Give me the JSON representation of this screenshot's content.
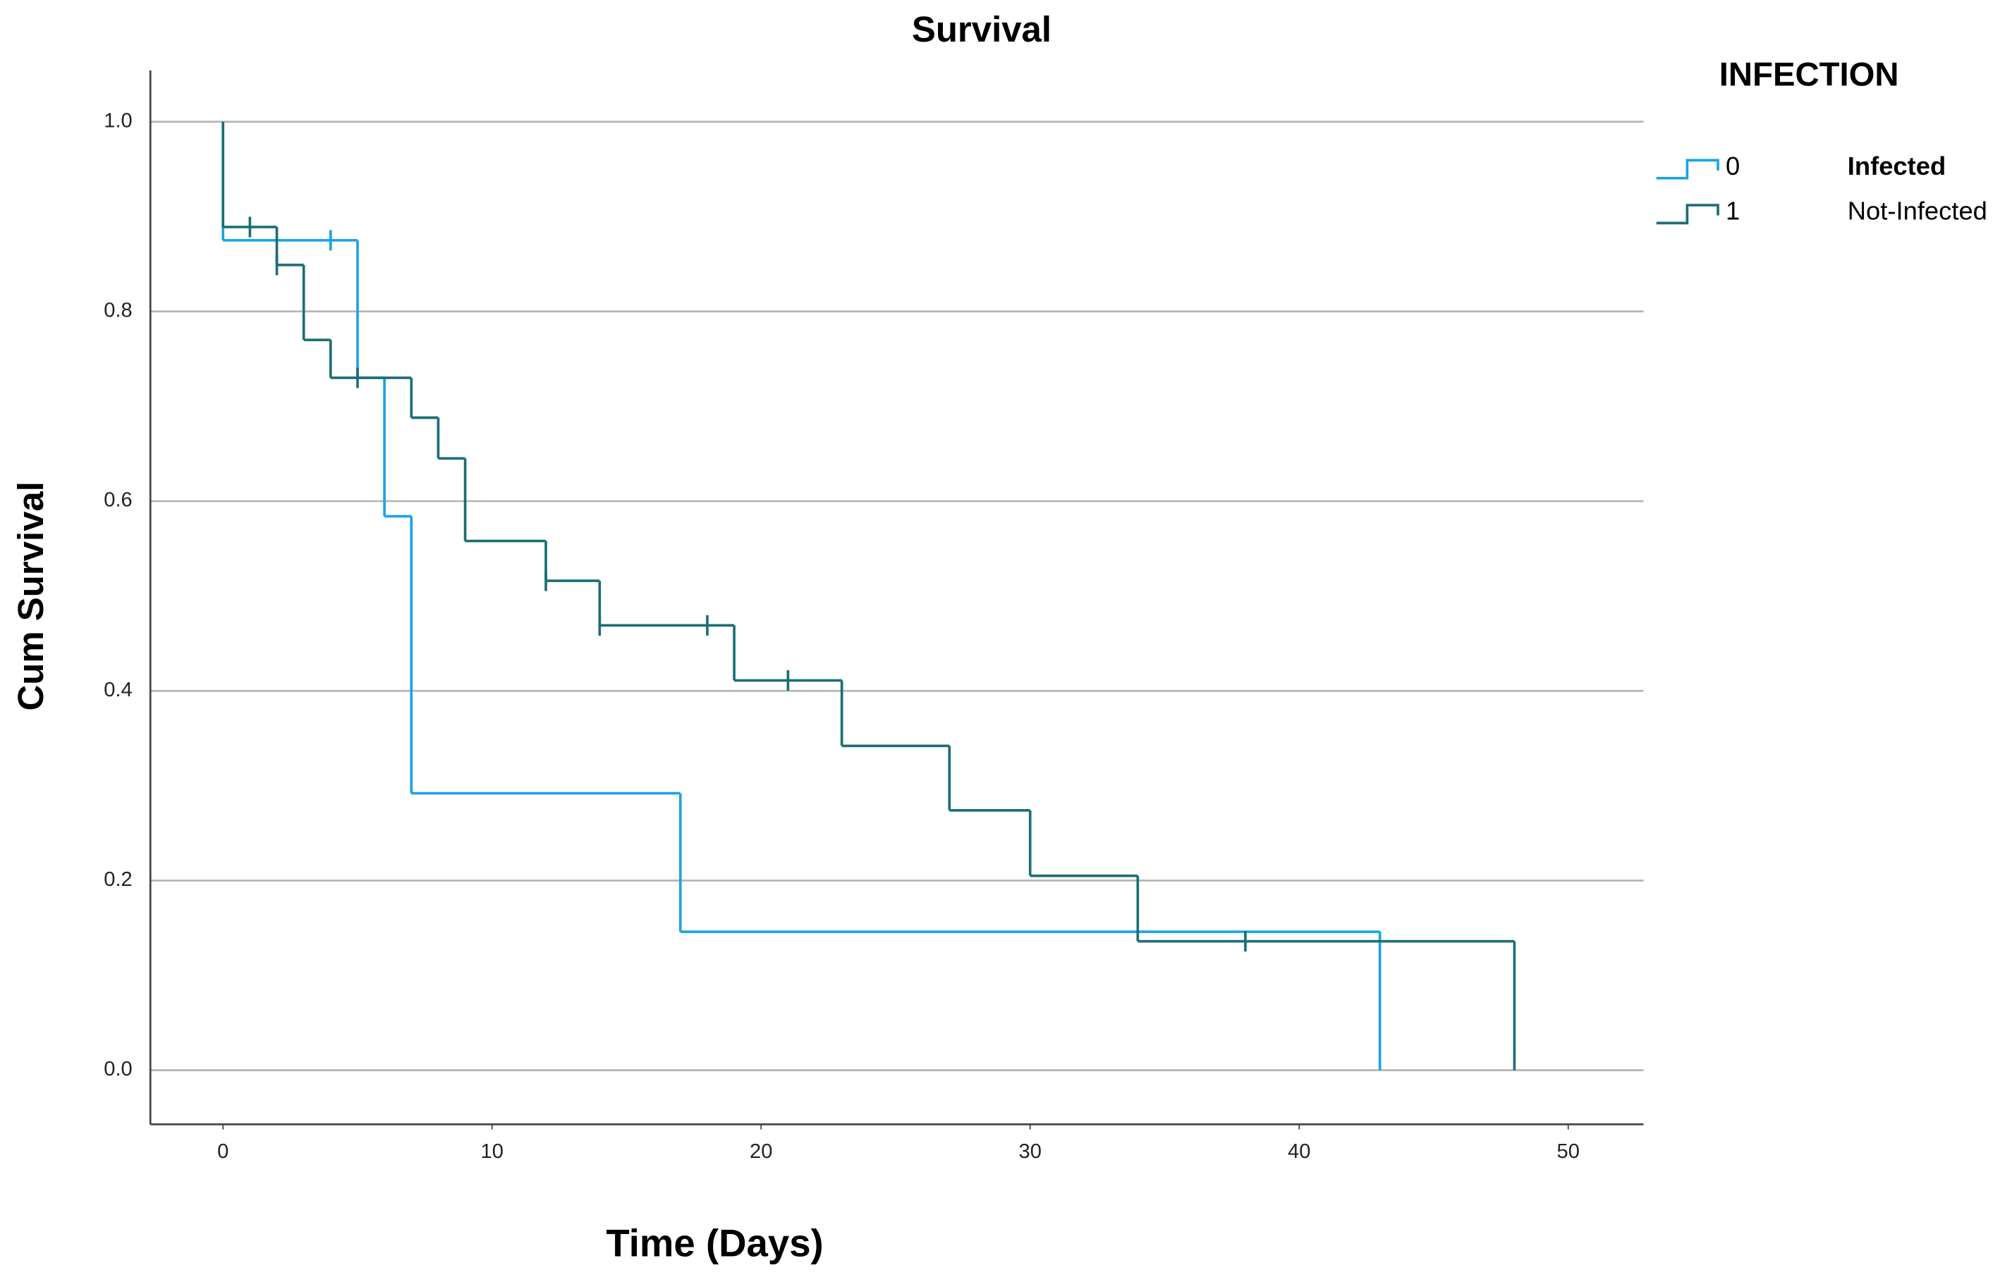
{
  "chart_data": {
    "type": "survival",
    "title": "Survival",
    "x_label": "Time (Days)",
    "y_label": "Cum Survival",
    "legend_title": "INFECTION",
    "xlim": [
      -2.7,
      52.8
    ],
    "ylim": [
      -0.057,
      1.054
    ],
    "xticks": [
      0,
      10,
      20,
      30,
      40,
      50
    ],
    "yticks": [
      {
        "value": 0,
        "label": "0.0"
      },
      {
        "value": 0.2,
        "label": "0.2"
      },
      {
        "value": 0.4,
        "label": "0.4"
      },
      {
        "value": 0.6,
        "label": "0.6"
      },
      {
        "value": 0.8,
        "label": "0.8"
      },
      {
        "value": 1,
        "label": "1.0"
      }
    ],
    "grid": true,
    "legend": "top-right",
    "series": [
      {
        "name": "0",
        "label": "Infected",
        "color": "#1aa3e8",
        "x": [
          0,
          0,
          5,
          6,
          7,
          17,
          43
        ],
        "values": [
          1.0,
          0.875,
          0.73,
          0.584,
          0.292,
          0.146,
          0
        ],
        "censored": {
          "x": [
            4
          ],
          "values": [
            0.875
          ]
        }
      },
      {
        "name": "1",
        "label": "Not-Infected",
        "color": "#1b6e73",
        "x": [
          0,
          0,
          2,
          3,
          4,
          7,
          8,
          9,
          12,
          14,
          19,
          23,
          27,
          30,
          34,
          48
        ],
        "values": [
          1.0,
          0.889,
          0.849,
          0.77,
          0.73,
          0.688,
          0.645,
          0.558,
          0.516,
          0.469,
          0.411,
          0.342,
          0.274,
          0.205,
          0.136,
          0
        ],
        "censored": {
          "x": [
            1,
            2,
            5,
            12,
            14,
            18,
            21,
            38
          ],
          "values": [
            0.889,
            0.849,
            0.73,
            0.516,
            0.469,
            0.469,
            0.411,
            0.136
          ]
        }
      }
    ]
  }
}
